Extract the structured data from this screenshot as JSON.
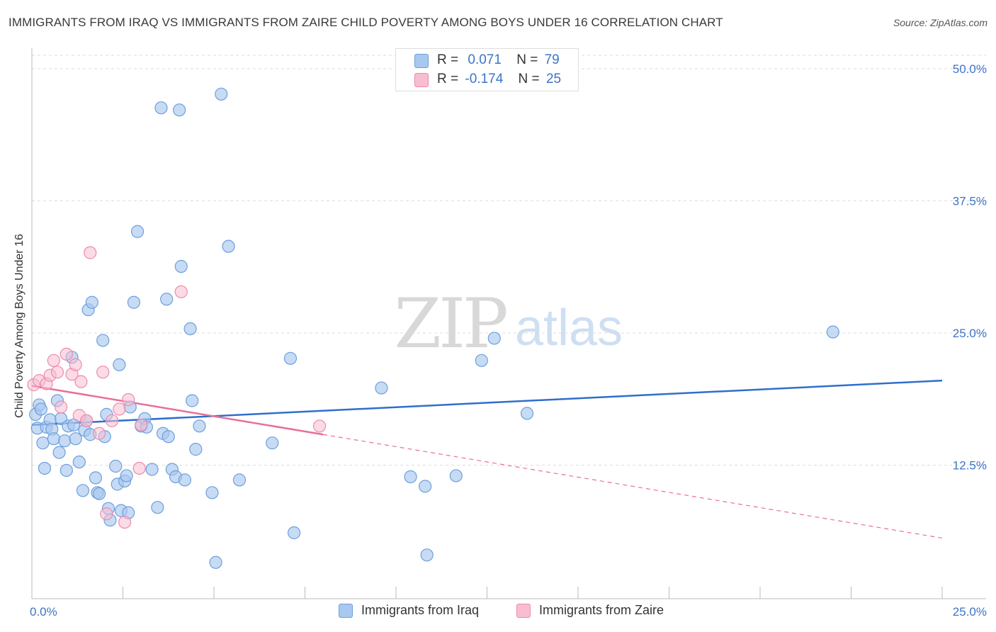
{
  "header": {
    "title": "IMMIGRANTS FROM IRAQ VS IMMIGRANTS FROM ZAIRE CHILD POVERTY AMONG BOYS UNDER 16 CORRELATION CHART",
    "source": "Source: ZipAtlas.com"
  },
  "watermark": {
    "zip": "ZIP",
    "atlas": "atlas"
  },
  "legend": {
    "iraq": {
      "r_label": "R =",
      "r_value": "0.071",
      "n_label": "N =",
      "n_value": "79"
    },
    "zaire": {
      "r_label": "R =",
      "r_value": "-0.174",
      "n_label": "N =",
      "n_value": "25"
    }
  },
  "colors": {
    "iraq_fill": "#a9c8f0",
    "iraq_stroke": "#6d9fdc",
    "iraq_line": "#2f6fcb",
    "zaire_fill": "#f8bdd0",
    "zaire_stroke": "#ee8aab",
    "zaire_line": "#e86f9a",
    "tick_label": "#3d74c7",
    "grid": "#dddddd"
  },
  "chart_data": {
    "type": "scatter",
    "xlabel": "",
    "ylabel": "Child Poverty Among Boys Under 16",
    "xlim": [
      0,
      25
    ],
    "ylim": [
      0,
      50
    ],
    "x_tick_labels": [
      {
        "value": 0,
        "label": "0.0%"
      },
      {
        "value": 25,
        "label": "25.0%"
      }
    ],
    "y_tick_labels": [
      {
        "value": 12.5,
        "label": "12.5%"
      },
      {
        "value": 25,
        "label": "25.0%"
      },
      {
        "value": 37.5,
        "label": "37.5%"
      },
      {
        "value": 50,
        "label": "50.0%"
      }
    ],
    "grid": true,
    "legend_position": "top-center",
    "series": [
      {
        "name": "Immigrants from Iraq",
        "color": "#a9c8f0",
        "trend": {
          "x": [
            0,
            25
          ],
          "y": [
            16.3,
            20.5
          ]
        },
        "points": [
          [
            0.1,
            17.3
          ],
          [
            0.15,
            16.0
          ],
          [
            0.2,
            18.2
          ],
          [
            0.25,
            17.8
          ],
          [
            0.3,
            14.6
          ],
          [
            0.35,
            12.2
          ],
          [
            0.4,
            16.1
          ],
          [
            0.5,
            16.8
          ],
          [
            0.55,
            15.9
          ],
          [
            0.6,
            15.0
          ],
          [
            0.7,
            18.6
          ],
          [
            0.75,
            13.7
          ],
          [
            0.8,
            16.9
          ],
          [
            0.9,
            14.8
          ],
          [
            0.95,
            12.0
          ],
          [
            1.0,
            16.2
          ],
          [
            1.1,
            22.7
          ],
          [
            1.15,
            16.3
          ],
          [
            1.2,
            15.0
          ],
          [
            1.3,
            12.8
          ],
          [
            1.4,
            10.1
          ],
          [
            1.45,
            15.8
          ],
          [
            1.5,
            16.7
          ],
          [
            1.55,
            27.2
          ],
          [
            1.6,
            15.4
          ],
          [
            1.65,
            27.9
          ],
          [
            1.75,
            11.3
          ],
          [
            1.8,
            9.9
          ],
          [
            1.85,
            9.8
          ],
          [
            1.95,
            24.3
          ],
          [
            2.0,
            15.2
          ],
          [
            2.05,
            17.3
          ],
          [
            2.1,
            8.4
          ],
          [
            2.15,
            7.3
          ],
          [
            2.3,
            12.4
          ],
          [
            2.35,
            10.7
          ],
          [
            2.4,
            22.0
          ],
          [
            2.45,
            8.2
          ],
          [
            2.55,
            11.0
          ],
          [
            2.6,
            11.5
          ],
          [
            2.65,
            8.0
          ],
          [
            2.7,
            18.0
          ],
          [
            2.8,
            27.9
          ],
          [
            2.9,
            34.6
          ],
          [
            3.0,
            16.2
          ],
          [
            3.1,
            16.9
          ],
          [
            3.15,
            16.1
          ],
          [
            3.3,
            12.1
          ],
          [
            3.45,
            8.5
          ],
          [
            3.55,
            46.3
          ],
          [
            3.6,
            15.5
          ],
          [
            3.7,
            28.2
          ],
          [
            3.75,
            15.2
          ],
          [
            3.85,
            12.1
          ],
          [
            3.95,
            11.4
          ],
          [
            4.05,
            46.1
          ],
          [
            4.1,
            31.3
          ],
          [
            4.2,
            11.1
          ],
          [
            4.35,
            25.4
          ],
          [
            4.4,
            18.6
          ],
          [
            4.5,
            14.0
          ],
          [
            4.6,
            16.2
          ],
          [
            4.95,
            9.9
          ],
          [
            5.05,
            3.3
          ],
          [
            5.2,
            47.6
          ],
          [
            5.4,
            33.2
          ],
          [
            5.7,
            11.1
          ],
          [
            6.6,
            14.6
          ],
          [
            7.1,
            22.6
          ],
          [
            7.2,
            6.1
          ],
          [
            9.6,
            19.8
          ],
          [
            10.4,
            11.4
          ],
          [
            10.8,
            10.5
          ],
          [
            10.85,
            4.0
          ],
          [
            11.65,
            11.5
          ],
          [
            12.35,
            22.4
          ],
          [
            12.7,
            24.5
          ],
          [
            13.6,
            17.4
          ],
          [
            22.0,
            25.1
          ]
        ]
      },
      {
        "name": "Immigrants from Zaire",
        "color": "#f8bdd0",
        "trend": {
          "x": [
            0,
            8.0
          ],
          "y": [
            20.0,
            15.4
          ]
        },
        "trend_extension": {
          "x": [
            8.0,
            25
          ],
          "y": [
            15.4,
            5.6
          ]
        },
        "points": [
          [
            0.05,
            20.1
          ],
          [
            0.2,
            20.5
          ],
          [
            0.4,
            20.2
          ],
          [
            0.5,
            21.0
          ],
          [
            0.6,
            22.4
          ],
          [
            0.7,
            21.3
          ],
          [
            0.8,
            18.0
          ],
          [
            0.95,
            23.0
          ],
          [
            1.1,
            21.1
          ],
          [
            1.2,
            22.0
          ],
          [
            1.3,
            17.2
          ],
          [
            1.35,
            20.4
          ],
          [
            1.5,
            16.7
          ],
          [
            1.6,
            32.6
          ],
          [
            1.85,
            15.5
          ],
          [
            1.95,
            21.3
          ],
          [
            2.05,
            7.9
          ],
          [
            2.2,
            16.7
          ],
          [
            2.4,
            17.8
          ],
          [
            2.55,
            7.1
          ],
          [
            2.65,
            18.7
          ],
          [
            2.95,
            12.2
          ],
          [
            3.0,
            16.3
          ],
          [
            4.1,
            28.9
          ],
          [
            7.9,
            16.2
          ]
        ]
      }
    ]
  },
  "bottom_legend": {
    "iraq": "Immigrants from Iraq",
    "zaire": "Immigrants from Zaire"
  }
}
